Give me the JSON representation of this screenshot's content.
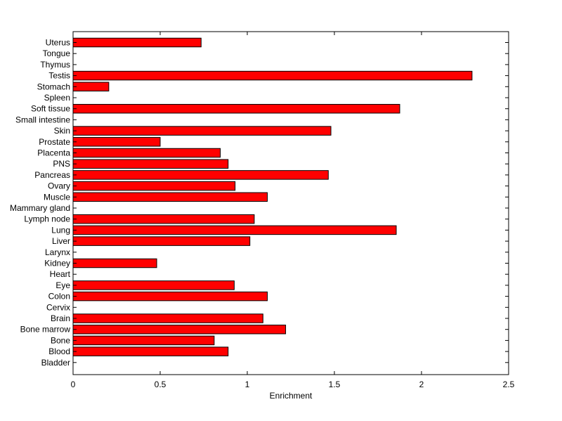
{
  "chart_data": {
    "type": "bar",
    "orientation": "horizontal",
    "xlabel": "Enrichment",
    "xlim": [
      0,
      2.5
    ],
    "xticks": [
      0,
      0.5,
      1,
      1.5,
      2,
      2.5
    ],
    "xtick_labels": [
      "0",
      "0.5",
      "1",
      "1.5",
      "2",
      "2.5"
    ],
    "grid": false,
    "bar_color": "#ff0000",
    "categories": [
      "Uterus",
      "Tongue",
      "Thymus",
      "Testis",
      "Stomach",
      "Spleen",
      "Soft tissue",
      "Small intestine",
      "Skin",
      "Prostate",
      "Placenta",
      "PNS",
      "Pancreas",
      "Ovary",
      "Muscle",
      "Mammary gland",
      "Lymph node",
      "Lung",
      "Liver",
      "Larynx",
      "Kidney",
      "Heart",
      "Eye",
      "Colon",
      "Cervix",
      "Brain",
      "Bone marrow",
      "Bone",
      "Blood",
      "Bladder"
    ],
    "values": [
      0.735,
      0,
      0,
      2.29,
      0.205,
      0,
      1.875,
      0,
      1.48,
      0.5,
      0.845,
      0.89,
      1.465,
      0.93,
      1.115,
      0,
      1.04,
      1.855,
      1.015,
      0,
      0.48,
      0,
      0.925,
      1.115,
      0,
      1.09,
      1.22,
      0.81,
      0.89,
      0
    ]
  }
}
